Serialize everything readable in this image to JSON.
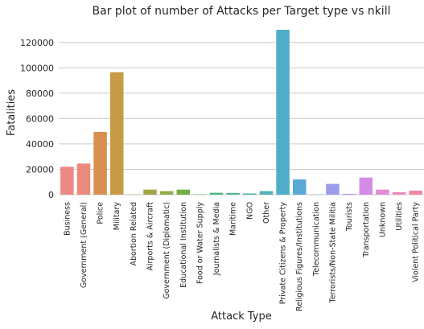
{
  "chart_data": {
    "type": "bar",
    "title": "Bar plot of number of Attacks per Target type vs nkill",
    "xlabel": "Attack Type",
    "ylabel": "Fatalities",
    "ylim": [
      0,
      137000
    ],
    "yticks": [
      0,
      20000,
      40000,
      60000,
      80000,
      100000,
      120000
    ],
    "ytick_labels": [
      "0",
      "20000",
      "40000",
      "60000",
      "80000",
      "100000",
      "120000"
    ],
    "grid": "horizontal",
    "categories": [
      "Business",
      "Government (General)",
      "Police",
      "Military",
      "Abortion Related",
      "Airports & Aircraft",
      "Government (Diplomatic)",
      "Educational Institution",
      "Food or Water Supply",
      "Journalists & Media",
      "Maritime",
      "NGO",
      "Other",
      "Private Citizens & Property",
      "Religious Figures/Institutions",
      "Telecommunication",
      "Terrorists/Non-State Militia",
      "Tourists",
      "Transportation",
      "Unknown",
      "Utilities",
      "Violent Political Party"
    ],
    "values": [
      22000,
      24500,
      49500,
      96500,
      200,
      4000,
      2800,
      4000,
      300,
      1500,
      1400,
      1000,
      2800,
      130000,
      12000,
      200,
      8500,
      700,
      13500,
      4000,
      2000,
      3200
    ],
    "colors": [
      "#ee8887",
      "#eb8a7b",
      "#d98f4e",
      "#c69a46",
      "#b2a046",
      "#a2a745",
      "#8fac4a",
      "#72b046",
      "#50b55a",
      "#52b482",
      "#55b399",
      "#55b2a9",
      "#56b0b8",
      "#4fadc9",
      "#59a9d8",
      "#6ca2e4",
      "#9a9ce9",
      "#b596ec",
      "#d38de6",
      "#e68ad2",
      "#eb89bb",
      "#ed88a8"
    ]
  }
}
